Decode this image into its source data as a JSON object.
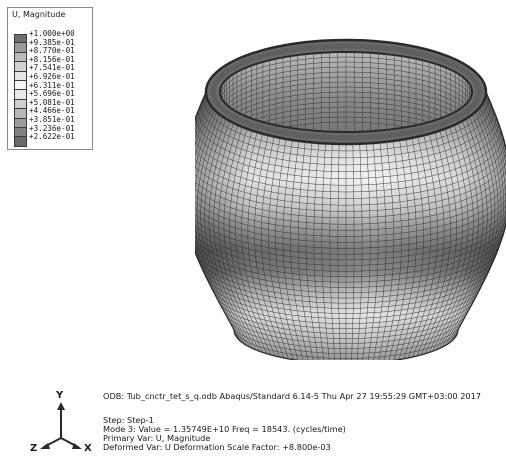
{
  "legend": {
    "title": "U, Magnitude",
    "values": [
      "+1.000e+00",
      "+9.385e-01",
      "+8.770e-01",
      "+8.156e-01",
      "+7.541e-01",
      "+6.926e-01",
      "+6.311e-01",
      "+5.696e-01",
      "+5.081e-01",
      "+4.466e-01",
      "+3.851e-01",
      "+3.236e-01",
      "+2.622e-01"
    ],
    "swatch_colors": [
      "#6f6f6f",
      "#9a9a9a",
      "#bababa",
      "#d2d2d2",
      "#e6e6e6",
      "#f4f4f4",
      "#e9e9e9",
      "#d0d0d0",
      "#b7b7b7",
      "#9d9d9d",
      "#838383",
      "#6a6a6a"
    ]
  },
  "triad": {
    "y_label": "Y",
    "z_label": "Z",
    "x_label": "X"
  },
  "info": {
    "odb_line": "ODB: Tub_cnctr_tet_s_q.odb    Abaqus/Standard 6.14-5    Thu Apr 27 19:55:29 GMT+03:00 2017",
    "step_line": "Step: Step-1",
    "mode_line": "Mode       3: Value =  1.35749E+10 Freq =    18543.     (cycles/time)",
    "primary_var_line": "Primary Var: U, Magnitude",
    "deformed_var_line": "Deformed Var: U   Deformation Scale Factor: +8.800e-03"
  }
}
